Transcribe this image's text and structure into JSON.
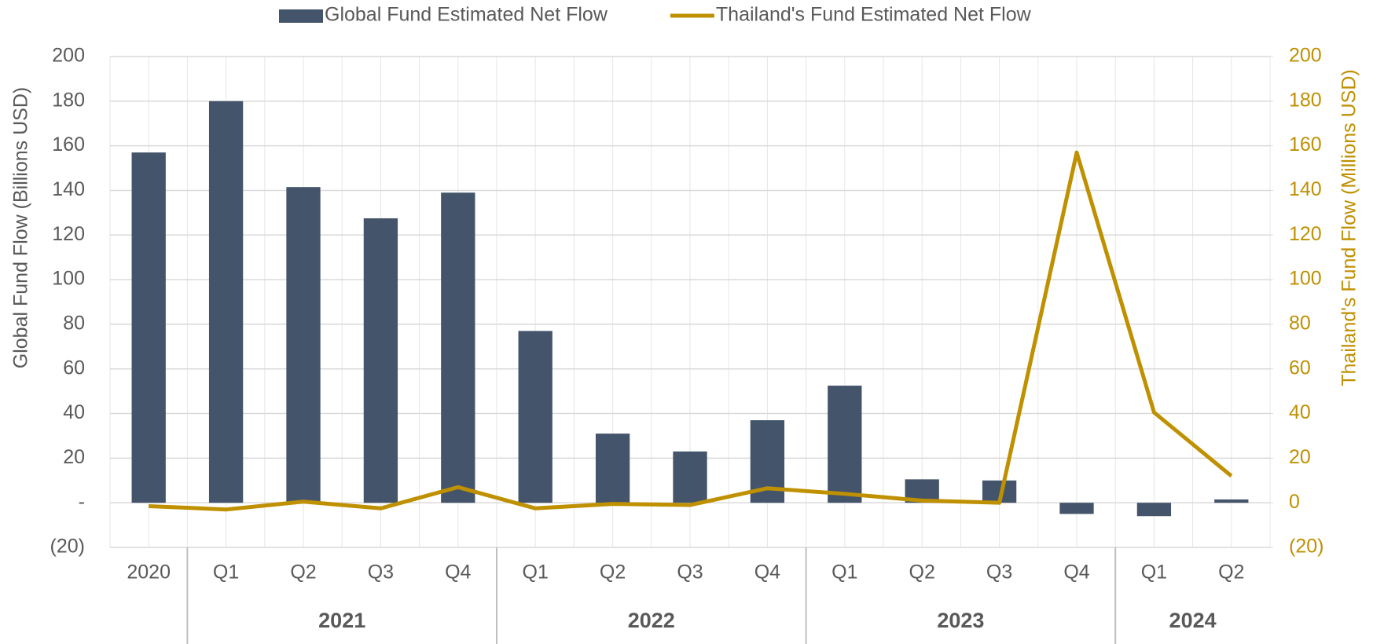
{
  "chart_data": {
    "type": "bar",
    "categories": [
      "2020",
      "Q1",
      "Q2",
      "Q3",
      "Q4",
      "Q1",
      "Q2",
      "Q3",
      "Q4",
      "Q1",
      "Q2",
      "Q3",
      "Q4",
      "Q1",
      "Q2"
    ],
    "category_groups": [
      null,
      "2021",
      "2021",
      "2021",
      "2021",
      "2022",
      "2022",
      "2022",
      "2022",
      "2023",
      "2023",
      "2023",
      "2023",
      "2024",
      "2024"
    ],
    "series": [
      {
        "name": "Global Fund Estimated Net Flow",
        "type": "bar",
        "color": "#44546a",
        "values": [
          157,
          180,
          141.5,
          127.5,
          139,
          77,
          31,
          23,
          37,
          52.5,
          10.5,
          10,
          -5,
          -6,
          1.5
        ]
      },
      {
        "name": "Thailand's Fund Estimated Net Flow",
        "type": "line",
        "color": "#bf9000",
        "axis": "y2",
        "values": [
          -1.5,
          -3,
          0.5,
          -2.5,
          7,
          -2.5,
          -0.5,
          -1,
          6.5,
          4,
          1,
          0,
          157,
          40.5,
          12
        ]
      }
    ],
    "ylabel": "Global Fund Flow (Billions USD)",
    "y2label": "Thailand's Fund Flow (Millions USD)",
    "ylim": [
      -20,
      200
    ],
    "yticks": [
      {
        "value": -20,
        "label": "(20)"
      },
      {
        "value": 0,
        "label": "-"
      },
      20,
      40,
      60,
      80,
      100,
      120,
      140,
      160,
      180,
      200
    ],
    "y2lim": [
      -20,
      200
    ],
    "y2ticks": [
      {
        "value": -20,
        "label": "(20)"
      },
      0,
      20,
      40,
      60,
      80,
      100,
      120,
      140,
      160,
      180,
      200
    ],
    "grid": true,
    "legend": "top"
  }
}
